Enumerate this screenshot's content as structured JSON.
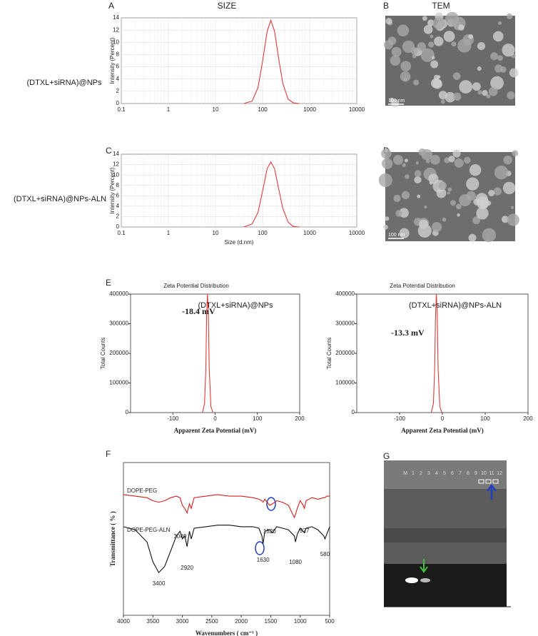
{
  "panel_labels": [
    "A",
    "B",
    "C",
    "D",
    "E",
    "F",
    "G"
  ],
  "headers": {
    "size": "SIZE",
    "tem": "TEM"
  },
  "row_labels": [
    "(DTXL+siRNA)@NPs",
    "(DTXL+siRNA)@NPs-ALN"
  ],
  "tem_scale_labels": [
    "100 nm",
    "100 nm"
  ],
  "gel": {
    "lanes": [
      "M",
      "1",
      "2",
      "3",
      "4",
      "5",
      "6",
      "7",
      "8",
      "9",
      "10",
      "11",
      "12"
    ]
  },
  "chart_data": [
    {
      "type": "line",
      "ylabel": "Intensity (Percent)",
      "log_x": true,
      "grid": true,
      "x": [
        40,
        60,
        80,
        100,
        125,
        150,
        180,
        220,
        270,
        350,
        450,
        600
      ],
      "series": [
        {
          "color": "#e03a3a",
          "values": [
            0,
            0.4,
            2.6,
            6.9,
            11.8,
            13.6,
            11.8,
            7.3,
            3.2,
            0.7,
            0.1,
            0
          ]
        }
      ],
      "xlim": [
        0.1,
        10000
      ],
      "xticks": [
        0.1,
        1,
        10,
        100,
        1000,
        10000
      ],
      "ylim": [
        0,
        14
      ],
      "yticks": [
        0,
        2,
        4,
        6,
        8,
        10,
        12,
        14
      ]
    },
    {
      "type": "line",
      "ylabel": "Intensity (Percent)",
      "xlabel": "Size (d.nm)",
      "log_x": true,
      "grid": true,
      "x": [
        40,
        60,
        80,
        100,
        125,
        150,
        180,
        220,
        270,
        350,
        450,
        600
      ],
      "series": [
        {
          "color": "#e03a3a",
          "values": [
            0,
            0.6,
            2.8,
            6.9,
            11.2,
            12.5,
            11.2,
            7.3,
            3.5,
            0.9,
            0.1,
            0
          ]
        }
      ],
      "xlim": [
        0.1,
        10000
      ],
      "xticks": [
        0.1,
        1,
        10,
        100,
        1000,
        10000
      ],
      "ylim": [
        0,
        14
      ],
      "yticks": [
        0,
        2,
        4,
        6,
        8,
        10,
        12,
        14
      ]
    },
    {
      "type": "line",
      "title": "Zeta Potential Distribution",
      "xlabel": "Apparent Zeta Potential (mV)",
      "ylabel": "Total Counts",
      "annotation": "-18.4 mV",
      "grid": false,
      "x": [
        -30,
        -25,
        -22,
        -20,
        -18,
        -16,
        -14,
        -10,
        -5
      ],
      "series": [
        {
          "name": "(DTXL+siRNA)@NPs",
          "color": "#e03a3a",
          "values": [
            0,
            30000,
            150000,
            330000,
            400000,
            330000,
            150000,
            20000,
            0
          ]
        }
      ],
      "xlim": [
        -200,
        200
      ],
      "xticks": [
        -100,
        0,
        100,
        200
      ],
      "ylim": [
        0,
        400000
      ],
      "yticks": [
        0,
        100000,
        200000,
        300000,
        400000
      ]
    },
    {
      "type": "line",
      "title": "Zeta Potential Distribution",
      "xlabel": "Apparent Zeta Potential (mV)",
      "ylabel": "Total Counts",
      "annotation": "-13.3 mV",
      "grid": false,
      "x": [
        -26,
        -21,
        -18,
        -16,
        -14,
        -12,
        -10,
        -6,
        -1
      ],
      "series": [
        {
          "name": "(DTXL+siRNA)@NPs-ALN",
          "color": "#e03a3a",
          "values": [
            0,
            30000,
            150000,
            330000,
            400000,
            330000,
            150000,
            20000,
            0
          ]
        }
      ],
      "xlim": [
        -200,
        200
      ],
      "xticks": [
        -100,
        0,
        100,
        200
      ],
      "ylim": [
        0,
        400000
      ],
      "yticks": [
        0,
        100000,
        200000,
        300000,
        400000
      ]
    },
    {
      "type": "line",
      "xlabel": "Wavenumbers ( cm⁻¹ )",
      "ylabel": "Transmittance ( % )",
      "grid": false,
      "x": [
        4000,
        3800,
        3600,
        3500,
        3400,
        3300,
        3200,
        3100,
        3040,
        3000,
        2960,
        2920,
        2880,
        2850,
        2800,
        2600,
        2400,
        2200,
        2000,
        1800,
        1700,
        1650,
        1630,
        1600,
        1520,
        1470,
        1400,
        1300,
        1200,
        1100,
        1080,
        1050,
        1000,
        950,
        927,
        900,
        800,
        700,
        600,
        580,
        550,
        500
      ],
      "series": [
        {
          "name": "DOPE-PEG",
          "color": "#d42020",
          "values": [
            79,
            78,
            77,
            75,
            74,
            75,
            77,
            78,
            77,
            72,
            70,
            67,
            73,
            70,
            77,
            78,
            79,
            78,
            78,
            77,
            76,
            75,
            74,
            76,
            72,
            73,
            75,
            74,
            72,
            64,
            66,
            70,
            75,
            72,
            70,
            75,
            77,
            76,
            77,
            77,
            78,
            78
          ]
        },
        {
          "name": "DOPE-PEG-ALN",
          "color": "#111111",
          "values": [
            58,
            56,
            48,
            35,
            28,
            32,
            42,
            52,
            55,
            50,
            52,
            45,
            55,
            50,
            57,
            58,
            59,
            59,
            58,
            58,
            57,
            52,
            47,
            55,
            56,
            54,
            58,
            57,
            56,
            52,
            48,
            53,
            57,
            55,
            54,
            57,
            58,
            56,
            52,
            50,
            53,
            58
          ]
        }
      ],
      "peak_labels": [
        3040,
        2920,
        3400,
        1520,
        1630,
        927,
        1080,
        580
      ],
      "xlim": [
        4000,
        500
      ],
      "xticks": [
        4000,
        3500,
        3000,
        2500,
        2000,
        1500,
        1000,
        500
      ],
      "ylim": [
        0,
        100
      ]
    }
  ]
}
